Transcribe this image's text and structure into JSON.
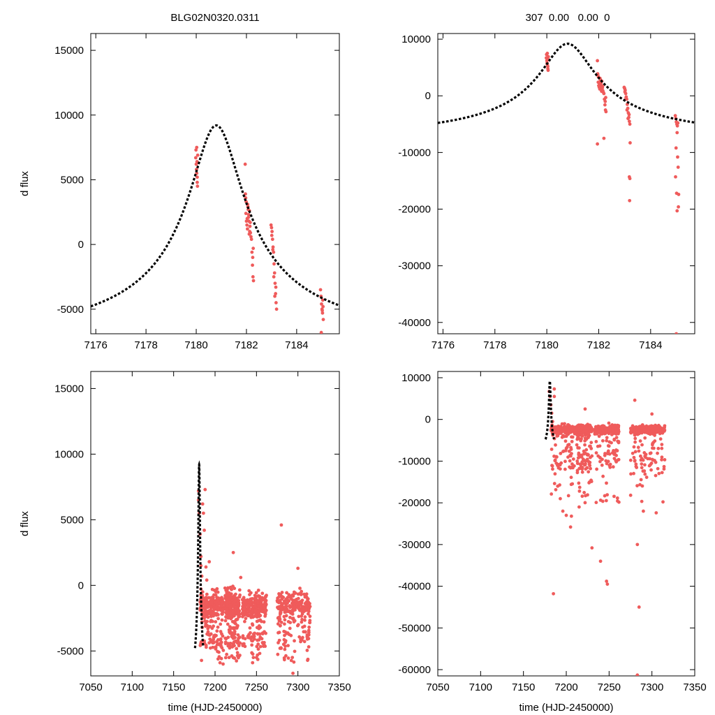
{
  "colors": {
    "points": "#ef5b5b",
    "model": "#000000",
    "axes": "#000000",
    "background": "#ffffff"
  },
  "header": {
    "left_title": "BLG02N0320.0311",
    "right_title": "307  0.00   0.00  0"
  },
  "chart_data": [
    {
      "type": "scatter",
      "panel": "top-left",
      "title": "BLG02N0320.0311",
      "xlabel": "",
      "ylabel": "d flux",
      "xlim": [
        7175.8,
        7185.7
      ],
      "ylim": [
        -6900,
        16300
      ],
      "xticks": [
        7176,
        7178,
        7180,
        7182,
        7184
      ],
      "yticks": [
        -5000,
        0,
        5000,
        10000,
        15000
      ],
      "model": {
        "name": "model",
        "t0": 7180.8,
        "amp": 17600,
        "tau": 1.05,
        "base": -8400
      },
      "series": [
        {
          "name": "data",
          "x": [
            7179.98,
            7179.99,
            7180.0,
            7180.01,
            7180.02,
            7180.03,
            7180.04,
            7180.05,
            7180.06,
            7180.02,
            7180.04,
            7181.95,
            7181.96,
            7181.97,
            7181.98,
            7182.0,
            7182.02,
            7182.04,
            7182.06,
            7182.08,
            7182.1,
            7182.12,
            7182.14,
            7182.16,
            7182.18,
            7182.2,
            7181.99,
            7182.03,
            7182.07,
            7182.11,
            7182.15,
            7182.05,
            7182.09,
            7182.13,
            7182.22,
            7182.24,
            7182.26,
            7182.28,
            7182.25,
            7182.27,
            7182.98,
            7183.0,
            7183.02,
            7183.04,
            7183.06,
            7183.08,
            7183.1,
            7183.12,
            7183.14,
            7183.16,
            7183.18,
            7183.2,
            7183.01,
            7183.05,
            7183.09,
            7183.13,
            7183.17,
            7184.95,
            7184.97,
            7184.99,
            7185.01,
            7185.03,
            7185.05,
            7185.02,
            7184.98,
            7185.04,
            7185.06
          ],
          "y": [
            6700,
            7300,
            6200,
            5800,
            5500,
            6400,
            4800,
            4500,
            6900,
            7500,
            5200,
            6200,
            3900,
            3600,
            2400,
            1800,
            1500,
            1200,
            2900,
            2100,
            1800,
            2600,
            1400,
            900,
            600,
            400,
            3300,
            2000,
            2700,
            800,
            1700,
            3100,
            2300,
            1000,
            -600,
            -1600,
            -2500,
            -2800,
            -1000,
            -300,
            1500,
            1300,
            1000,
            400,
            -200,
            -600,
            -1500,
            -2200,
            -3000,
            -3800,
            -4500,
            -5000,
            700,
            -400,
            -2500,
            -4000,
            -3300,
            -3500,
            -4000,
            -4600,
            -5000,
            -5300,
            -4800,
            -5100,
            -6800,
            -4300,
            -5800
          ]
        }
      ]
    },
    {
      "type": "scatter",
      "panel": "top-right",
      "title": "307  0.00   0.00  0",
      "xlabel": "",
      "ylabel": "",
      "xlim": [
        7175.8,
        7185.7
      ],
      "ylim": [
        -42000,
        11000
      ],
      "xticks": [
        7176,
        7178,
        7180,
        7182,
        7184
      ],
      "yticks": [
        -40000,
        -30000,
        -20000,
        -10000,
        0,
        10000
      ],
      "model": {
        "name": "model",
        "t0": 7180.8,
        "amp": 17600,
        "tau": 1.05,
        "base": -8400
      },
      "series": [
        {
          "name": "data",
          "x": [
            7179.98,
            7179.99,
            7180.0,
            7180.01,
            7180.02,
            7180.03,
            7180.04,
            7180.05,
            7180.06,
            7180.02,
            7180.04,
            7181.95,
            7181.96,
            7181.97,
            7181.98,
            7182.0,
            7182.02,
            7182.04,
            7182.06,
            7182.08,
            7182.1,
            7182.12,
            7182.14,
            7182.16,
            7182.18,
            7182.2,
            7181.99,
            7182.03,
            7182.07,
            7182.11,
            7182.15,
            7182.05,
            7182.09,
            7182.13,
            7182.22,
            7182.24,
            7182.26,
            7182.28,
            7182.25,
            7182.27,
            7182.98,
            7183.0,
            7183.02,
            7183.04,
            7183.06,
            7183.08,
            7183.1,
            7183.12,
            7183.14,
            7183.16,
            7183.18,
            7183.2,
            7183.01,
            7183.05,
            7183.09,
            7183.13,
            7183.17,
            7181.95,
            7182.2,
            7183.18,
            7183.19,
            7183.2,
            7183.21,
            7184.95,
            7184.97,
            7184.99,
            7185.01,
            7185.03,
            7185.05,
            7185.02,
            7184.98,
            7185.04,
            7185.06,
            7184.96,
            7185.0,
            7185.07,
            7185.08,
            7185.02,
            7184.99
          ],
          "y": [
            6700,
            7300,
            6200,
            5800,
            5500,
            6400,
            4800,
            4500,
            6900,
            7500,
            5200,
            6200,
            3900,
            3600,
            2400,
            1800,
            1500,
            1200,
            2900,
            2100,
            1800,
            2600,
            1400,
            900,
            600,
            400,
            3300,
            2000,
            2700,
            800,
            1700,
            3100,
            2300,
            1000,
            -600,
            -1600,
            -2500,
            -2800,
            -1000,
            -300,
            1500,
            1300,
            1000,
            400,
            -200,
            -600,
            -1500,
            -2200,
            -3000,
            -3800,
            -4500,
            -5000,
            700,
            -400,
            -2500,
            -4000,
            -3300,
            -8500,
            -7500,
            -14300,
            -18500,
            -14600,
            -8300,
            -3500,
            -4000,
            -4600,
            -5000,
            -5300,
            -4800,
            -6500,
            -9200,
            -10800,
            -12600,
            -14300,
            -17200,
            -19600,
            -17400,
            -20300,
            -42000
          ]
        }
      ]
    },
    {
      "type": "scatter",
      "panel": "bottom-left",
      "title": "",
      "xlabel": "time (HJD-2450000)",
      "ylabel": "d flux",
      "xlim": [
        7050,
        7350
      ],
      "ylim": [
        -6900,
        16300
      ],
      "xticks": [
        7050,
        7100,
        7150,
        7200,
        7250,
        7300,
        7350
      ],
      "yticks": [
        -5000,
        0,
        5000,
        10000,
        15000
      ],
      "model": {
        "name": "model",
        "t0": 7180.8,
        "amp": 17600,
        "tau": 1.05,
        "base": -8400,
        "range": [
          7175.8,
          7185.7
        ]
      },
      "clusters": [
        [
          7182,
          7210
        ],
        [
          7212,
          7230
        ],
        [
          7233,
          7262
        ],
        [
          7275,
          7315
        ]
      ],
      "series": [
        {
          "name": "data",
          "x": [
            7180,
            7180,
            7181,
            7182,
            7183,
            7183,
            7184,
            7185,
            7185,
            7186,
            7187,
            7188,
            7189,
            7190,
            7193,
            7196,
            7200,
            7206,
            7222,
            7231,
            7250,
            7280,
            7300,
            7294
          ],
          "y": [
            7200,
            6500,
            5500,
            3900,
            2200,
            1500,
            700,
            -500,
            6200,
            5500,
            4200,
            7300,
            1400,
            400,
            1800,
            -1200,
            -3800,
            -5900,
            2500,
            600,
            -5500,
            4600,
            1300,
            -6700
          ]
        }
      ]
    },
    {
      "type": "scatter",
      "panel": "bottom-right",
      "title": "",
      "xlabel": "time (HJD-2450000)",
      "ylabel": "",
      "xlim": [
        7050,
        7350
      ],
      "ylim": [
        -61500,
        11500
      ],
      "xticks": [
        7050,
        7100,
        7150,
        7200,
        7250,
        7300,
        7350
      ],
      "yticks": [
        -60000,
        -50000,
        -40000,
        -30000,
        -20000,
        -10000,
        0,
        10000
      ],
      "model": {
        "name": "model",
        "t0": 7180.8,
        "amp": 17600,
        "tau": 1.05,
        "base": -8400,
        "range": [
          7175.8,
          7185.7
        ]
      },
      "clusters": [
        [
          7182,
          7210
        ],
        [
          7212,
          7230
        ],
        [
          7233,
          7262
        ],
        [
          7275,
          7315
        ]
      ],
      "series": [
        {
          "name": "data",
          "x": [
            7180,
            7181,
            7182,
            7183,
            7184,
            7185,
            7186,
            7186,
            7190,
            7193,
            7196,
            7200,
            7205,
            7206,
            7215,
            7222,
            7230,
            7240,
            7247,
            7248,
            7285,
            7280,
            7283,
            7290,
            7300,
            7305,
            7185,
            7283
          ],
          "y": [
            6700,
            5500,
            3500,
            1500,
            -500,
            -3000,
            5500,
            7300,
            -16000,
            -19000,
            -22000,
            -23000,
            -25800,
            -23200,
            -21000,
            2500,
            -30800,
            -34000,
            -38800,
            -39500,
            -45000,
            4600,
            -30000,
            -22000,
            1300,
            -22400,
            -41800,
            -61300
          ]
        }
      ]
    }
  ]
}
